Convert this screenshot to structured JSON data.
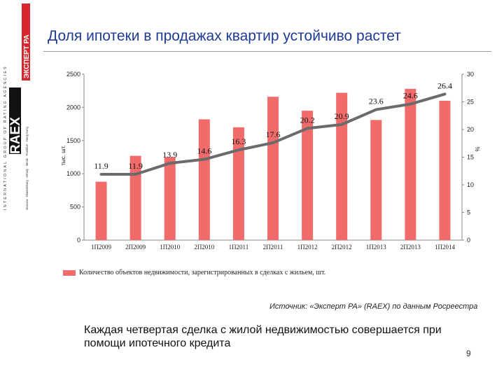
{
  "title": "Доля ипотеки в продажах квартир устойчиво растет",
  "logo": {
    "brand": "RAEX",
    "brand_ru": "ЭКСПЕРТ РА",
    "side_text": "INTERNATIONAL GROUP OF RATING AGENCIES",
    "cities": "Moscow · Ekaterinburg · Almaty · Minsk · Frankfurt · Hong Kong"
  },
  "chart_data": {
    "type": "bar",
    "categories": [
      "1П2009",
      "2П2009",
      "1П2010",
      "2П2010",
      "1П2011",
      "2П2011",
      "1П2012",
      "2П2012",
      "1П2013",
      "2П2013",
      "1П2014"
    ],
    "bar_series": {
      "name": "Количество объектов недвижимости, зарегистрированных в сделках с жильем, шт.",
      "values": [
        880,
        1270,
        1250,
        1820,
        1700,
        2160,
        1950,
        2220,
        1810,
        2280,
        2100
      ],
      "color": "#f26b6b"
    },
    "line_points": [
      11.9,
      11.9,
      13.9,
      14.6,
      16.3,
      17.6,
      20.2,
      20.9,
      23.6,
      24.6,
      26.4
    ],
    "line_labels": [
      "11.9",
      "11.9",
      "13.9",
      "14.6",
      "16.3",
      "17.6",
      "20.2",
      "20.9",
      "23.6",
      "24.6",
      "26.4"
    ],
    "line_color": "#6b6b6b",
    "ylabel_left": "тыс. шт.",
    "ylabel_right": "%",
    "ylim_left": [
      0,
      2500
    ],
    "ylim_right": [
      0,
      30
    ],
    "yticks_left": [
      "0",
      "500",
      "1000",
      "1500",
      "2000",
      "2500"
    ],
    "yticks_right": [
      "0",
      "5",
      "10",
      "15",
      "20",
      "25",
      "30"
    ],
    "grid": false,
    "legend_position": "bottom"
  },
  "source": "Источник: «Эксперт РА» (RAEX) по данным Росреестра",
  "subtitle": "Каждая четвертая сделка с жилой недвижимостью совершается при помощи ипотечного кредита",
  "page_number": "9"
}
